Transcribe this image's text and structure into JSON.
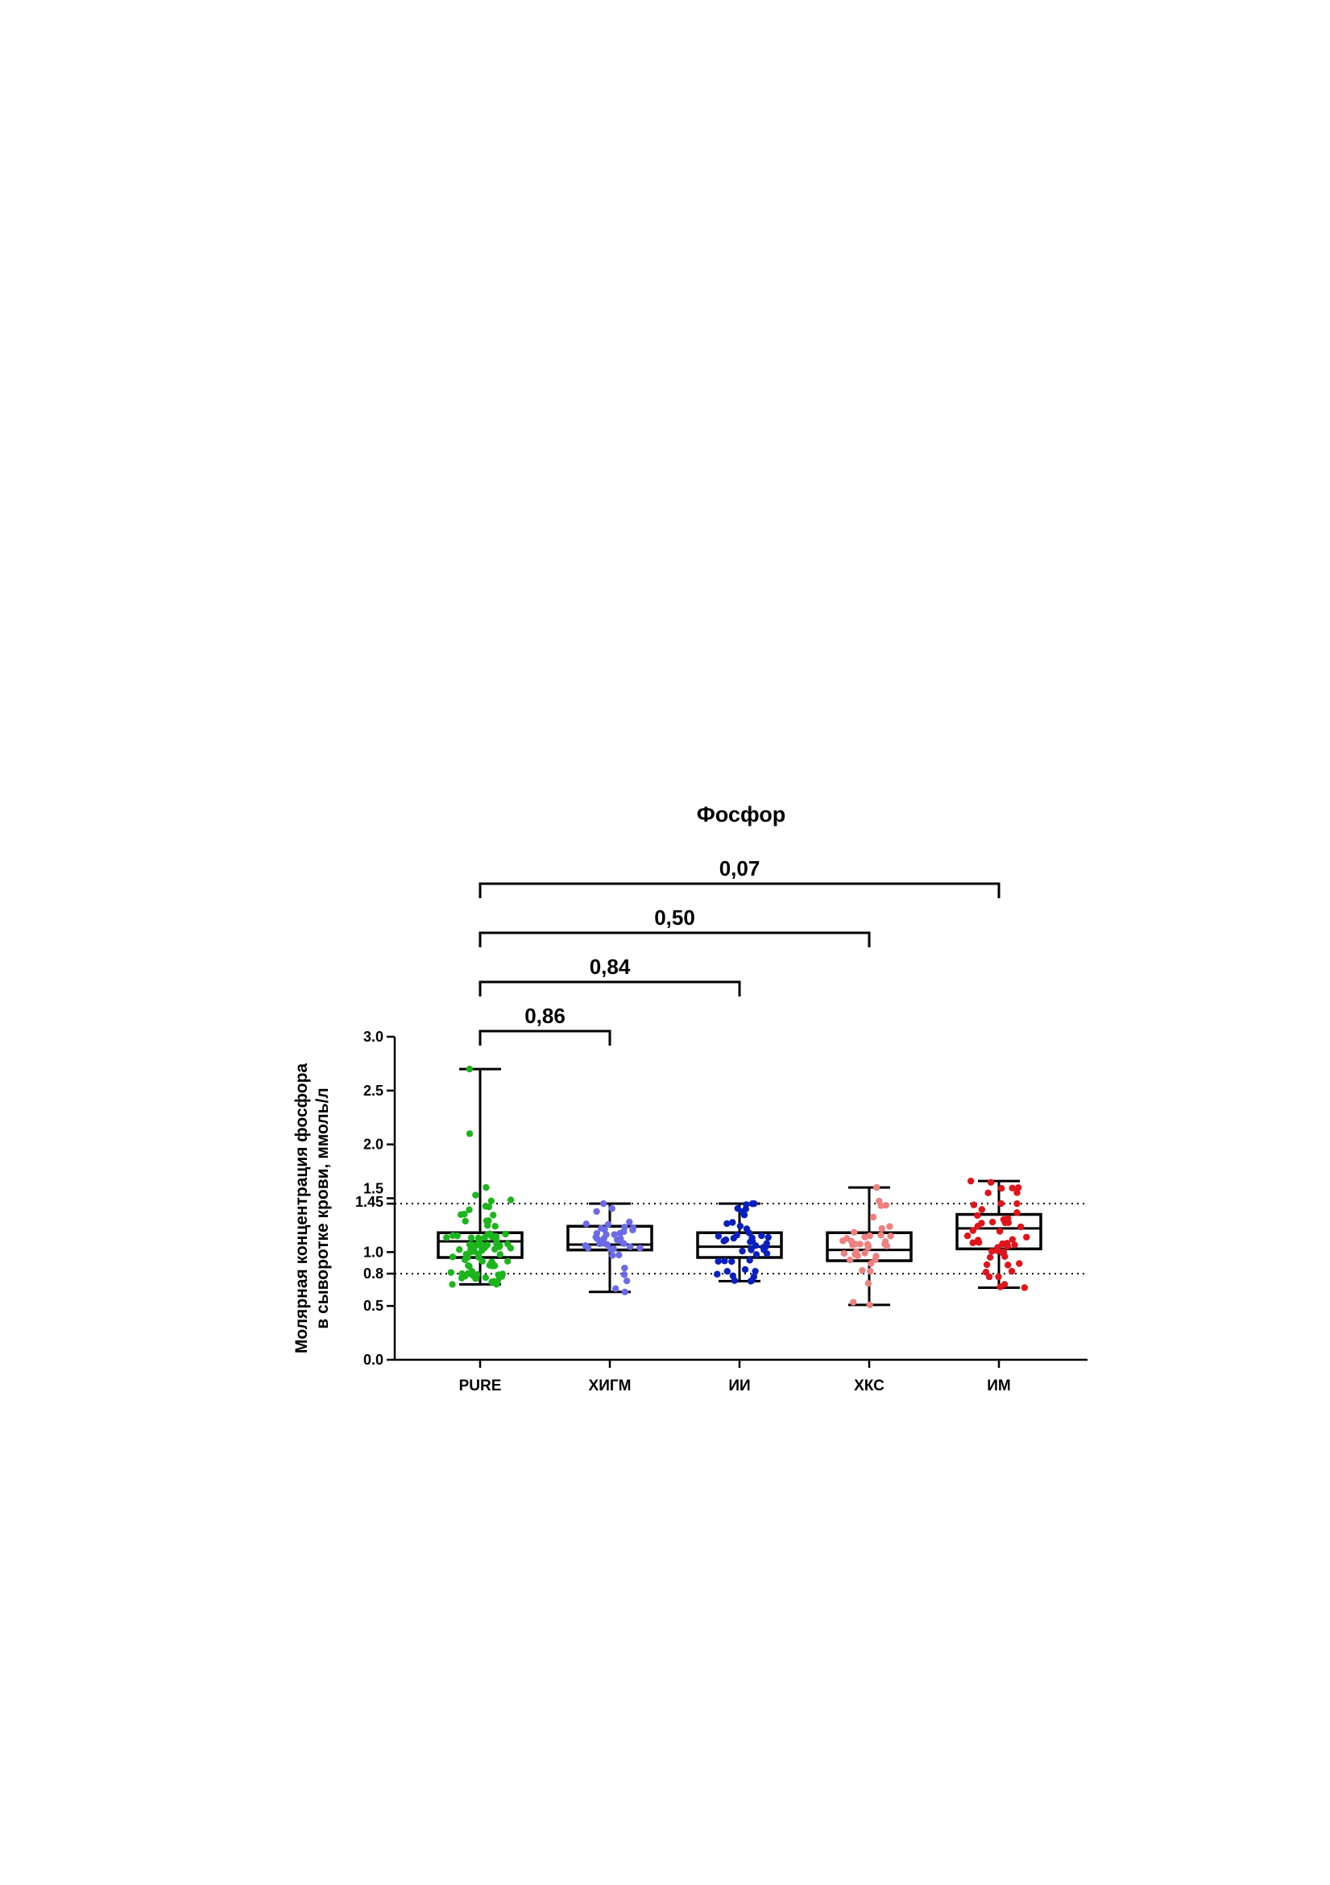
{
  "chart_data": {
    "type": "box",
    "title": "Фосфор",
    "ylabel_lines": [
      "Молярная концентрация фосфора",
      "в сыворотке крови, ммоль/л"
    ],
    "ylim": [
      0,
      3.0
    ],
    "yticks": [
      {
        "value": 0.0,
        "label": "0.0"
      },
      {
        "value": 0.5,
        "label": "0.5"
      },
      {
        "value": 0.8,
        "label": "0.8"
      },
      {
        "value": 1.0,
        "label": "1.0"
      },
      {
        "value": 1.45,
        "label": "1.45"
      },
      {
        "value": 1.5,
        "label": "1.5"
      },
      {
        "value": 2.0,
        "label": "2.0"
      },
      {
        "value": 2.5,
        "label": "2.5"
      },
      {
        "value": 3.0,
        "label": "3.0"
      }
    ],
    "reference_lines": [
      0.8,
      1.45
    ],
    "grid": false,
    "categories": [
      "PURE",
      "ХИГМ",
      "ИИ",
      "ХКС",
      "ИМ"
    ],
    "series": [
      {
        "category": "PURE",
        "color": "#1cb51c",
        "min": 0.7,
        "q1": 0.95,
        "median": 1.1,
        "q3": 1.18,
        "max": 2.7,
        "n": 90,
        "extra_points": [
          2.1,
          1.6
        ]
      },
      {
        "category": "ХИГМ",
        "color": "#6b6be6",
        "min": 0.63,
        "q1": 1.02,
        "median": 1.07,
        "q3": 1.24,
        "max": 1.45,
        "n": 40,
        "extra_points": []
      },
      {
        "category": "ИИ",
        "color": "#0a1fc0",
        "min": 0.73,
        "q1": 0.95,
        "median": 1.05,
        "q3": 1.18,
        "max": 1.45,
        "n": 45,
        "extra_points": []
      },
      {
        "category": "ХКС",
        "color": "#ee8080",
        "min": 0.51,
        "q1": 0.92,
        "median": 1.02,
        "q3": 1.18,
        "max": 1.6,
        "n": 40,
        "extra_points": []
      },
      {
        "category": "ИМ",
        "color": "#e0141a",
        "min": 0.67,
        "q1": 1.03,
        "median": 1.22,
        "q3": 1.35,
        "max": 1.66,
        "n": 50,
        "extra_points": []
      }
    ],
    "comparisons": [
      {
        "from": "PURE",
        "to": "ХИГМ",
        "label": "0,86"
      },
      {
        "from": "PURE",
        "to": "ИИ",
        "label": "0,84"
      },
      {
        "from": "PURE",
        "to": "ХКС",
        "label": "0,50"
      },
      {
        "from": "PURE",
        "to": "ИМ",
        "label": "0,07"
      }
    ]
  }
}
